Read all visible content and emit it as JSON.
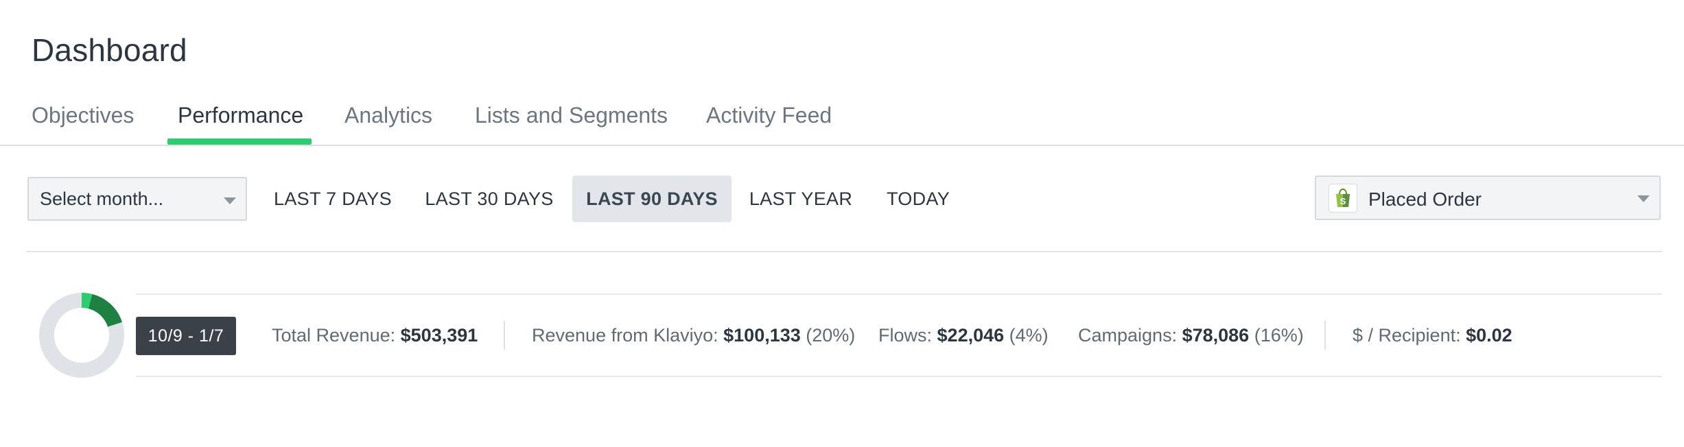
{
  "header": {
    "title": "Dashboard"
  },
  "tabs": [
    {
      "label": "Objectives",
      "active": false
    },
    {
      "label": "Performance",
      "active": true
    },
    {
      "label": "Analytics",
      "active": false
    },
    {
      "label": "Lists and Segments",
      "active": false
    },
    {
      "label": "Activity Feed",
      "active": false
    }
  ],
  "filters": {
    "month_select": {
      "value": "Select month..."
    },
    "ranges": [
      {
        "label": "LAST 7 DAYS",
        "active": false
      },
      {
        "label": "LAST 30 DAYS",
        "active": false
      },
      {
        "label": "LAST 90 DAYS",
        "active": true
      },
      {
        "label": "LAST YEAR",
        "active": false
      },
      {
        "label": "TODAY",
        "active": false
      }
    ],
    "metric_select": {
      "value": "Placed Order",
      "icon": "shopify-bag-icon"
    }
  },
  "summary": {
    "date_range": "10/9 - 1/7",
    "total_revenue": {
      "label": "Total Revenue:",
      "value": "$503,391"
    },
    "klaviyo_revenue": {
      "label": "Revenue from Klaviyo:",
      "value": "$100,133",
      "pct": "(20%)"
    },
    "flows": {
      "label": "Flows:",
      "value": "$22,046",
      "pct": "(4%)"
    },
    "campaigns": {
      "label": "Campaigns:",
      "value": "$78,086",
      "pct": "(16%)"
    },
    "per_recipient": {
      "label": "$ / Recipient:",
      "value": "$0.02"
    }
  },
  "donut": {
    "flows_fraction": 0.04,
    "campaigns_fraction": 0.16,
    "colors": {
      "track": "#dfe3e7",
      "flows": "#2ecc71",
      "campaigns": "#1e8043"
    }
  },
  "colors": {
    "accent": "#2ecc71",
    "badge_bg": "#3a4149"
  }
}
